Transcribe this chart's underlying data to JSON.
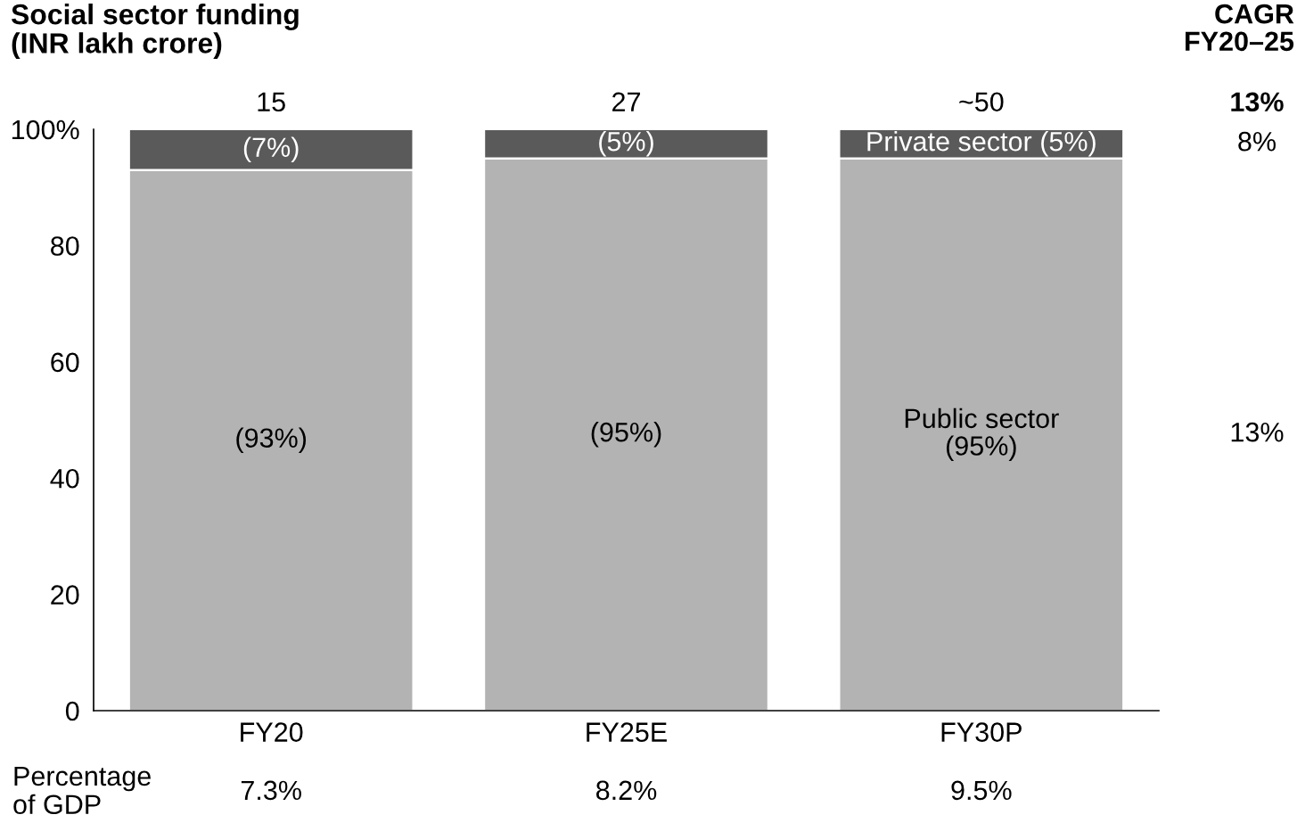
{
  "chart_data": {
    "type": "bar",
    "title": "Social sector funding\n(INR lakh crore)",
    "categories": [
      "FY20",
      "FY25E",
      "FY30P"
    ],
    "series": [
      {
        "name": "Public sector",
        "color": "#b3b3b3",
        "values": [
          93,
          95,
          95
        ],
        "value_labels": [
          "(93%)",
          "(95%)",
          "(95%)"
        ]
      },
      {
        "name": "Private sector",
        "color": "#5a5a5a",
        "values": [
          7,
          5,
          5
        ],
        "value_labels": [
          "(7%)",
          "(5%)",
          "(5%)"
        ]
      }
    ],
    "stacked": true,
    "ylim": [
      0,
      100
    ],
    "yticks": [
      0,
      20,
      40,
      60,
      80,
      {
        "value": 100,
        "label": "100%"
      }
    ],
    "annotations": [
      "CAGR\nFY20–25",
      "15",
      "27",
      "~50",
      "13%",
      "8%",
      "13%",
      "Percentage\nof GDP",
      "7.3%",
      "8.2%",
      "9.5%"
    ]
  }
}
